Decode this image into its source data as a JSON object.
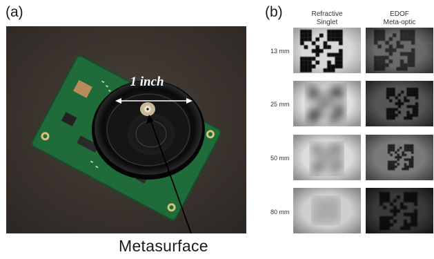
{
  "figure": {
    "panel_a_label": "(a)",
    "panel_b_label": "(b)",
    "dimension_label": "1 inch",
    "callout_label": "Metasurface"
  },
  "panel_b": {
    "columns": [
      {
        "line1": "Refractive",
        "line2": "Singlet"
      },
      {
        "line1": "EDOF",
        "line2": "Meta-optic"
      }
    ],
    "rows": [
      "13 mm",
      "25 mm",
      "50 mm",
      "80 mm"
    ]
  },
  "colors": {
    "background": "#ffffff",
    "tabletop": "#3d3530",
    "pcb": "#1f6b3a",
    "lens_holder": "#101010"
  }
}
